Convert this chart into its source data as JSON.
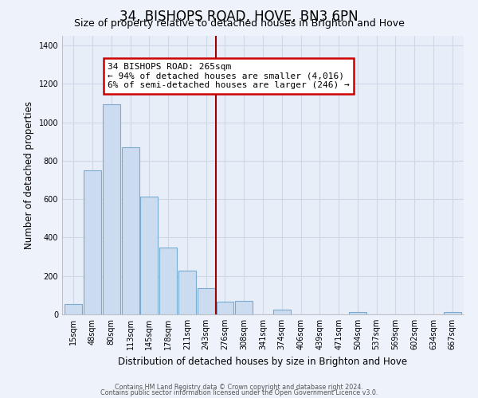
{
  "title": "34, BISHOPS ROAD, HOVE, BN3 6PN",
  "subtitle": "Size of property relative to detached houses in Brighton and Hove",
  "xlabel": "Distribution of detached houses by size in Brighton and Hove",
  "ylabel": "Number of detached properties",
  "footnote1": "Contains HM Land Registry data © Crown copyright and database right 2024.",
  "footnote2": "Contains public sector information licensed under the Open Government Licence v3.0.",
  "bar_labels": [
    "15sqm",
    "48sqm",
    "80sqm",
    "113sqm",
    "145sqm",
    "178sqm",
    "211sqm",
    "243sqm",
    "276sqm",
    "308sqm",
    "341sqm",
    "374sqm",
    "406sqm",
    "439sqm",
    "471sqm",
    "504sqm",
    "537sqm",
    "569sqm",
    "602sqm",
    "634sqm",
    "667sqm"
  ],
  "bar_values": [
    55,
    750,
    1095,
    870,
    615,
    350,
    228,
    135,
    65,
    72,
    0,
    25,
    0,
    0,
    0,
    13,
    0,
    0,
    0,
    0,
    13
  ],
  "bar_color": "#ccdcf0",
  "bar_edge_color": "#7aaad0",
  "background_color": "#edf2fb",
  "grid_color": "#d0d8e8",
  "plot_bg_color": "#e8eef8",
  "ylim_max": 1450,
  "yticks": [
    0,
    200,
    400,
    600,
    800,
    1000,
    1200,
    1400
  ],
  "ann_line1": "34 BISHOPS ROAD: 265sqm",
  "ann_line2": "← 94% of detached houses are smaller (4,016)",
  "ann_line3": "6% of semi-detached houses are larger (246) →",
  "vline_color": "#990000",
  "ann_box_edge_color": "#cc0000",
  "title_fontsize": 12,
  "subtitle_fontsize": 9,
  "axis_label_fontsize": 8.5,
  "tick_fontsize": 7,
  "ann_fontsize": 8
}
